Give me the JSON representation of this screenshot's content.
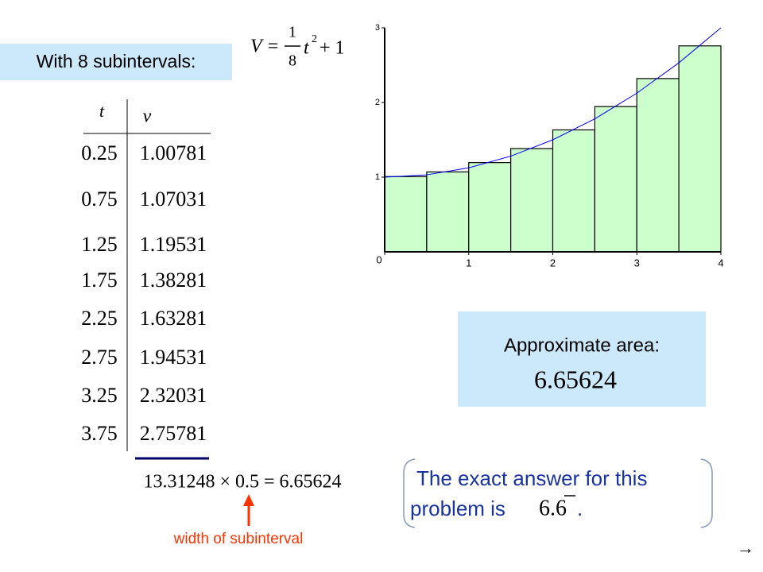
{
  "header": {
    "title": "With 8 subintervals:"
  },
  "formula": {
    "lhs": "V =",
    "numerator": "1",
    "denominator": "8",
    "variable": "t",
    "exponent": "2",
    "rest": "+ 1"
  },
  "table": {
    "columns": [
      "t",
      "v"
    ],
    "rows": [
      [
        "0.25",
        "1.00781"
      ],
      [
        "0.75",
        "1.07031"
      ],
      [
        "1.25",
        "1.19531"
      ],
      [
        "1.75",
        "1.38281"
      ],
      [
        "2.25",
        "1.63281"
      ],
      [
        "2.75",
        "1.94531"
      ],
      [
        "3.25",
        "2.32031"
      ],
      [
        "3.75",
        "2.75781"
      ]
    ],
    "sum_line": "13.31248 × 0.5 = 6.65624",
    "annotation": "width of subinterval"
  },
  "approx": {
    "label": "Approximate area:",
    "value": "6.65624"
  },
  "exact": {
    "line1": "The exact answer for this",
    "line2": "problem is",
    "value": "6.6",
    "end": "."
  },
  "nav": "→",
  "chart_data": {
    "type": "histogram",
    "bins": [
      0,
      0.5,
      1,
      1.5,
      2,
      2.5,
      3,
      3.5,
      4
    ],
    "values": [
      1.00781,
      1.07031,
      1.19531,
      1.38281,
      1.63281,
      1.94531,
      2.32031,
      2.75781
    ],
    "color": "#ccffcc",
    "curve": {
      "color": "#0000ff",
      "x": [
        0,
        0.5,
        1,
        1.5,
        2,
        2.5,
        3,
        3.5,
        4
      ],
      "values": [
        1,
        1.03125,
        1.125,
        1.28125,
        1.5,
        1.78125,
        2.125,
        2.53125,
        3
      ]
    },
    "xlim": [
      0,
      4
    ],
    "ylim": [
      0,
      3
    ],
    "xticks": [
      0,
      1,
      2,
      3,
      4
    ],
    "yticks": [
      0,
      1,
      2,
      3
    ]
  }
}
